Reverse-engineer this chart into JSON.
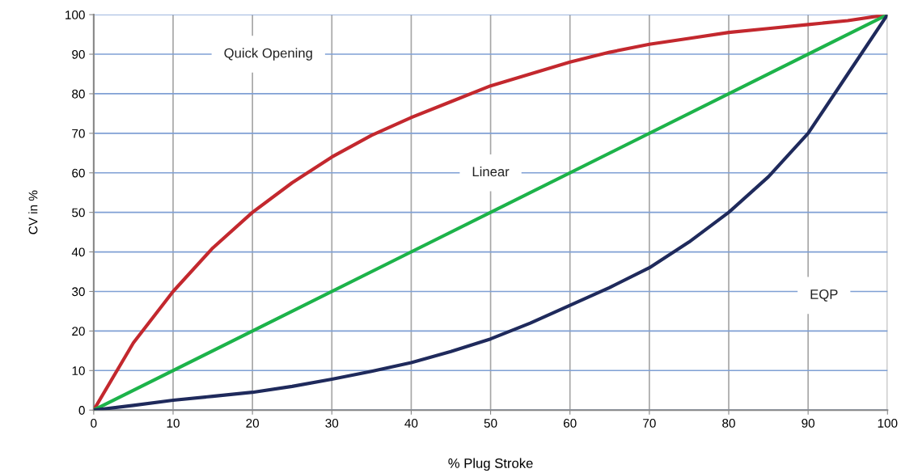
{
  "chart_data": {
    "type": "line",
    "xlabel": "% Plug Stroke",
    "ylabel": "CV in %",
    "xlim": [
      0,
      100
    ],
    "ylim": [
      0,
      100
    ],
    "xticks": [
      0,
      10,
      20,
      30,
      40,
      50,
      60,
      70,
      80,
      90,
      100
    ],
    "yticks": [
      0,
      10,
      20,
      30,
      40,
      50,
      60,
      70,
      80,
      90,
      100
    ],
    "grid": true,
    "legend": false,
    "marker": "none",
    "line_style": "solid",
    "series": [
      {
        "color": "#c3282e",
        "x": [
          0,
          5,
          10,
          15,
          20,
          25,
          30,
          35,
          40,
          45,
          50,
          55,
          60,
          65,
          70,
          75,
          80,
          85,
          90,
          95,
          100
        ],
        "values": [
          0,
          17,
          30,
          41,
          50,
          57.5,
          64,
          69.5,
          74,
          78,
          82,
          85,
          88,
          90.5,
          92.5,
          94,
          95.5,
          96.5,
          97.5,
          98.5,
          100
        ]
      },
      {
        "color": "#1db34a",
        "x": [
          0,
          100
        ],
        "values": [
          0,
          100
        ]
      },
      {
        "color": "#1f2a5c",
        "x": [
          0,
          5,
          10,
          15,
          20,
          25,
          30,
          35,
          40,
          45,
          50,
          55,
          60,
          65,
          70,
          75,
          80,
          85,
          90,
          95,
          100
        ],
        "values": [
          0,
          1.2,
          2.5,
          3.5,
          4.5,
          6,
          7.8,
          9.8,
          12,
          14.8,
          18,
          22,
          26.5,
          31,
          36,
          42.5,
          50,
          59,
          70,
          85,
          100
        ]
      }
    ],
    "annotations": [
      "Quick Opening",
      "Linear",
      "EQP"
    ]
  }
}
